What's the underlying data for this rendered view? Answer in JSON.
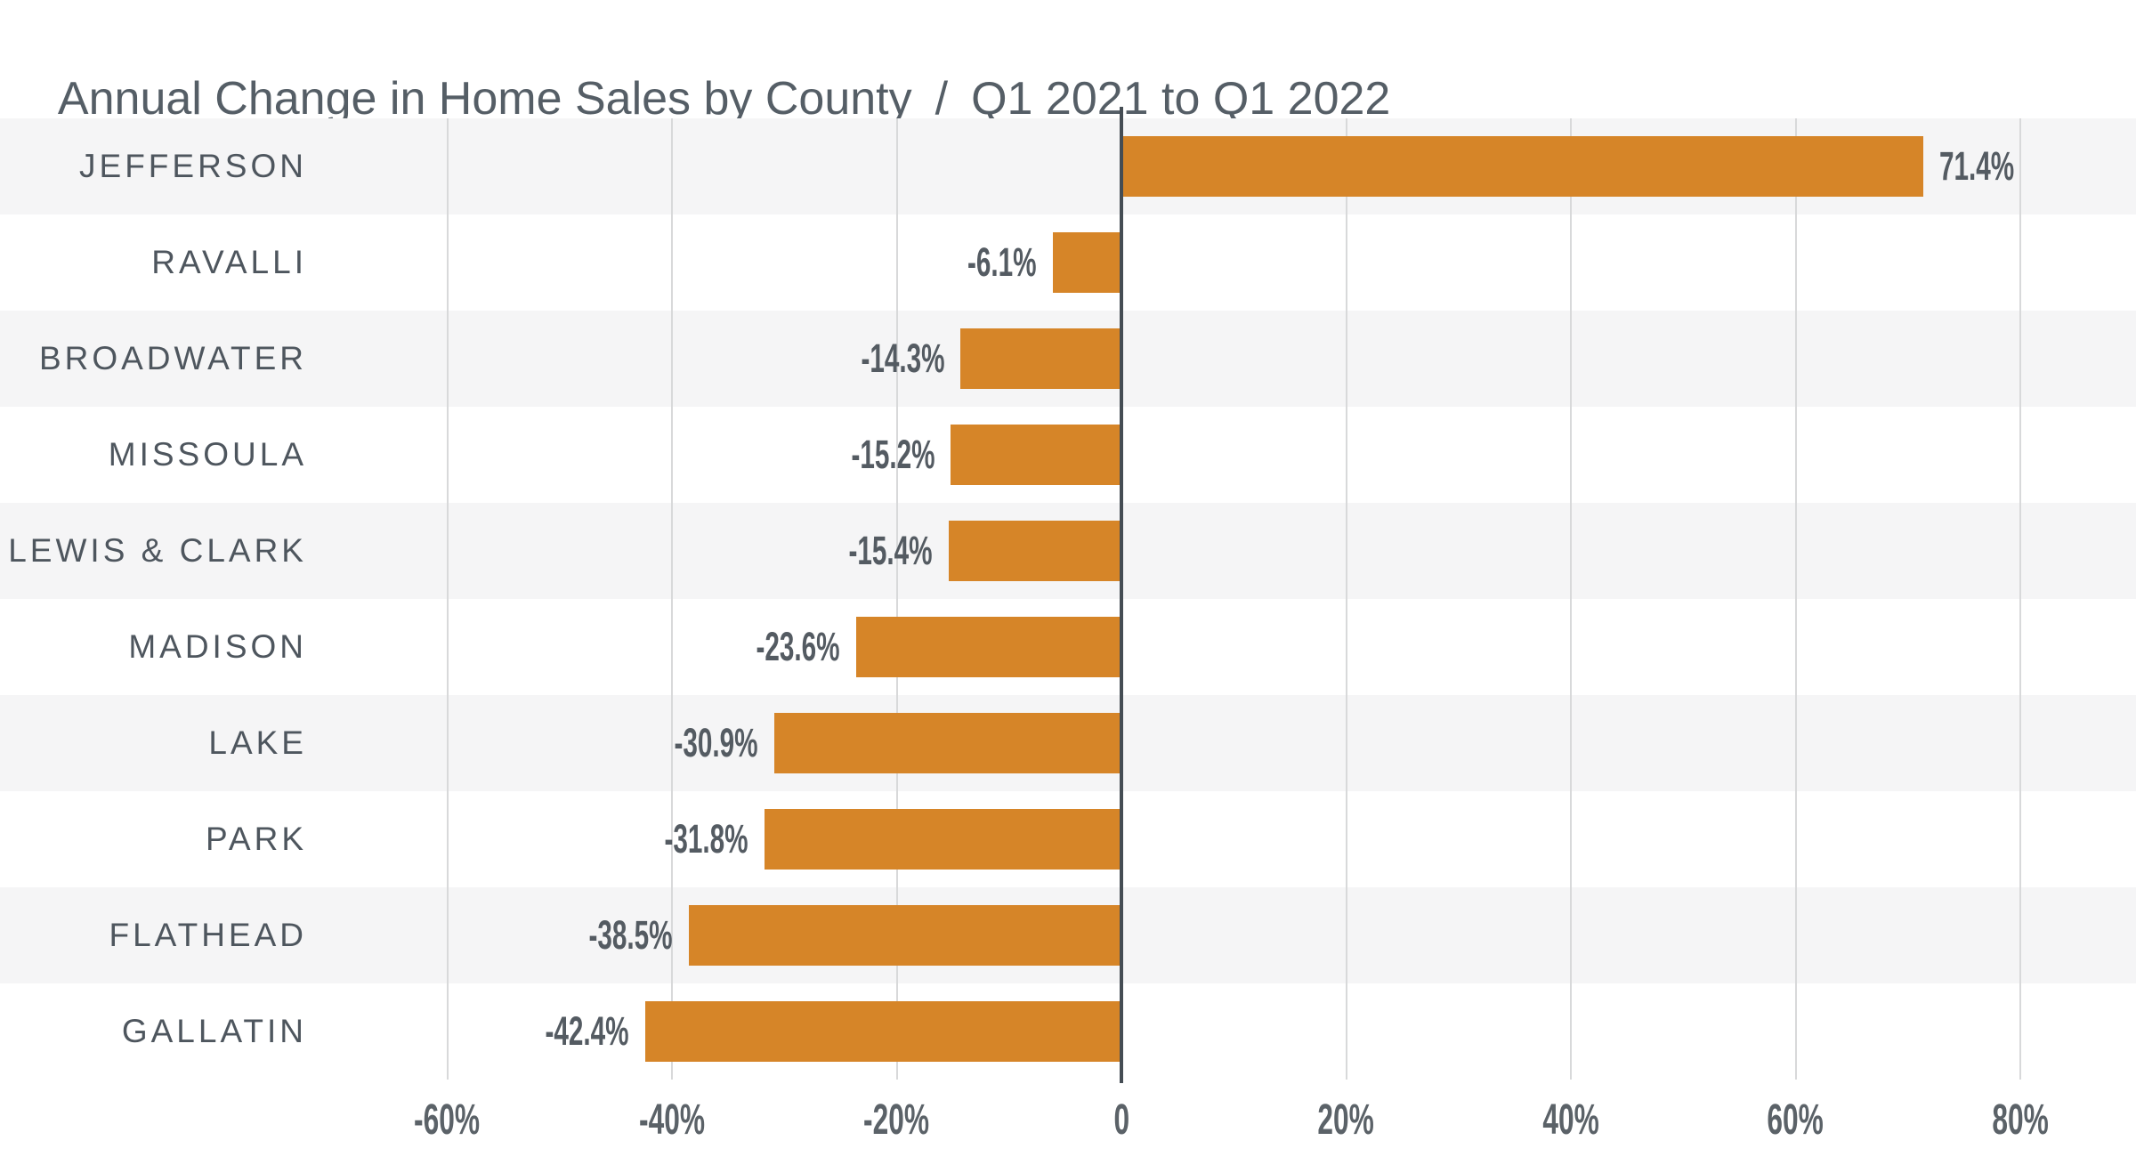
{
  "title": {
    "left": "Annual Change in Home Sales by County",
    "separator": "/",
    "right": "Q1 2021 to Q1 2022"
  },
  "chart_data": {
    "type": "bar",
    "orientation": "horizontal",
    "title": "Annual Change in Home Sales by County / Q1 2021 to Q1 2022",
    "categories": [
      "JEFFERSON",
      "RAVALLI",
      "BROADWATER",
      "MISSOULA",
      "LEWIS & CLARK",
      "MADISON",
      "LAKE",
      "PARK",
      "FLATHEAD",
      "GALLATIN"
    ],
    "values": [
      71.4,
      -6.1,
      -14.3,
      -15.2,
      -15.4,
      -23.6,
      -30.9,
      -31.8,
      -38.5,
      -42.4
    ],
    "value_labels": [
      "71.4%",
      "-6.1%",
      "-14.3%",
      "-15.2%",
      "-15.4%",
      "-23.6%",
      "-30.9%",
      "-31.8%",
      "-38.5%",
      "-42.4%"
    ],
    "xlabel": "",
    "ylabel": "",
    "xlim": [
      -70,
      90
    ],
    "grid": true,
    "legend": false,
    "x_axis": {
      "ticks": [
        -60,
        -40,
        -20,
        0,
        20,
        40,
        60,
        80
      ],
      "tick_labels": [
        "-60%",
        "-40%",
        "-20%",
        "0",
        "20%",
        "40%",
        "60%",
        "80%"
      ]
    },
    "colors": {
      "bar": "#d68528",
      "row_stripe": "#f5f5f6",
      "gridline": "#d8d9da",
      "zero_line": "#454d54",
      "category_label": "#4e565e",
      "value_label": "#545b62",
      "axis_label": "#5b6268",
      "title": "#555e66"
    }
  }
}
